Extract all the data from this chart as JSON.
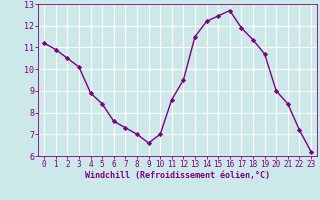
{
  "x": [
    0,
    1,
    2,
    3,
    4,
    5,
    6,
    7,
    8,
    9,
    10,
    11,
    12,
    13,
    14,
    15,
    16,
    17,
    18,
    19,
    20,
    21,
    22,
    23
  ],
  "y": [
    11.2,
    10.9,
    10.5,
    10.1,
    8.9,
    8.4,
    7.6,
    7.3,
    7.0,
    6.6,
    7.0,
    8.6,
    9.5,
    11.5,
    12.2,
    12.45,
    12.7,
    11.9,
    11.35,
    10.7,
    9.0,
    8.4,
    7.2,
    6.2
  ],
  "line_color": "#800080",
  "marker": "D",
  "markersize": 2.2,
  "bg_color": "#cce8e8",
  "grid_color": "#ffffff",
  "xlabel": "Windchill (Refroidissement éolien,°C)",
  "xlabel_color": "#800080",
  "tick_color": "#800080",
  "ylim": [
    6,
    13
  ],
  "xlim": [
    -0.5,
    23.5
  ],
  "yticks": [
    6,
    7,
    8,
    9,
    10,
    11,
    12,
    13
  ],
  "xticks": [
    0,
    1,
    2,
    3,
    4,
    5,
    6,
    7,
    8,
    9,
    10,
    11,
    12,
    13,
    14,
    15,
    16,
    17,
    18,
    19,
    20,
    21,
    22,
    23
  ],
  "linewidth": 1.0,
  "tick_fontsize": 5.5,
  "xlabel_fontsize": 6.0
}
